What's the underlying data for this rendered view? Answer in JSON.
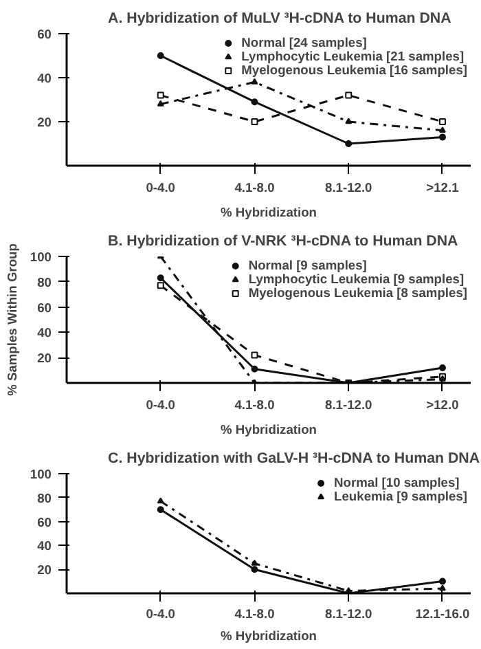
{
  "chart_data": [
    {
      "type": "line",
      "title": "A. Hybridization of MuLV ³H-cDNA to Human DNA",
      "xlabel": "% Hybridization",
      "categories": [
        "0-4.0",
        "4.1-8.0",
        "8.1-12.0",
        ">12.1"
      ],
      "ylim": [
        0,
        60
      ],
      "yticks": [
        20,
        40,
        60
      ],
      "legend": "top right",
      "grid": false,
      "series": [
        {
          "name": "Normal [24 samples]",
          "color": "#111111",
          "values": [
            50,
            29,
            10,
            13
          ],
          "marker": "circle",
          "line_style": "solid"
        },
        {
          "name": "Lymphocytic Leukemia [21 samples]",
          "color": "#111111",
          "values": [
            28,
            38,
            20,
            16
          ],
          "marker": "triangle",
          "line_style": "dashdot"
        },
        {
          "name": "Myelogenous Leukemia [16 samples]",
          "color": "#111111",
          "values": [
            32,
            20,
            32,
            20
          ],
          "marker": "square",
          "line_style": "dashed"
        }
      ]
    },
    {
      "type": "line",
      "title": "B. Hybridization of V-NRK ³H-cDNA to Human DNA",
      "xlabel": "% Hybridization",
      "ylabel": "% Samples Within Group",
      "categories": [
        "0-4.0",
        "4.1-8.0",
        "8.1-12.0",
        ">12.0"
      ],
      "ylim": [
        0,
        100
      ],
      "yticks": [
        20,
        40,
        60,
        80,
        100
      ],
      "legend": "top right",
      "grid": false,
      "series": [
        {
          "name": "Normal [9 samples]",
          "color": "#111111",
          "values": [
            83,
            11,
            0,
            12
          ],
          "marker": "circle",
          "line_style": "solid"
        },
        {
          "name": "Lymphocytic Leukemia [9 samples]",
          "color": "#111111",
          "values": [
            100,
            0,
            0,
            3
          ],
          "marker": "triangle",
          "line_style": "dashdot"
        },
        {
          "name": "Myelogenous Leukemia [8 samples]",
          "color": "#111111",
          "values": [
            77,
            22,
            0,
            5
          ],
          "marker": "square",
          "line_style": "dashed"
        }
      ]
    },
    {
      "type": "line",
      "title": "C. Hybridization with GaLV-H ³H-cDNA to Human DNA",
      "xlabel": "% Hybridization",
      "categories": [
        "0-4.0",
        "4.1-8.0",
        "8.1-12.0",
        "12.1-16.0"
      ],
      "ylim": [
        0,
        100
      ],
      "yticks": [
        20,
        40,
        60,
        80,
        100
      ],
      "legend": "top right",
      "grid": false,
      "series": [
        {
          "name": "Normal [10 samples]",
          "color": "#111111",
          "values": [
            70,
            20,
            0,
            10
          ],
          "marker": "circle",
          "line_style": "solid"
        },
        {
          "name": "Leukemia [9 samples]",
          "color": "#111111",
          "values": [
            77,
            25,
            2,
            4
          ],
          "marker": "triangle",
          "line_style": "dashdot"
        }
      ]
    }
  ]
}
